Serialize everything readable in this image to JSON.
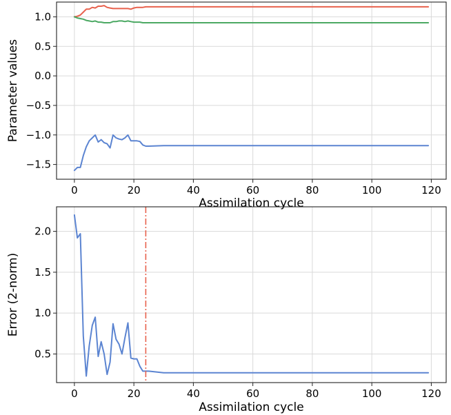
{
  "chart_data": [
    {
      "type": "line",
      "xlabel": "Assimilation cycle",
      "ylabel": "Parameter values",
      "xlim": [
        -6,
        125
      ],
      "ylim": [
        -1.75,
        1.25
      ],
      "xticks": [
        0,
        20,
        40,
        60,
        80,
        100,
        120
      ],
      "yticks": [
        -1.5,
        -1.0,
        -0.5,
        0.0,
        0.5,
        1.0
      ],
      "xtick_labels": [
        "0",
        "20",
        "40",
        "60",
        "80",
        "100",
        "120"
      ],
      "ytick_labels": [
        "−1.5",
        "−1.0",
        "−0.5",
        "0.0",
        "0.5",
        "1.0"
      ],
      "grid": true,
      "series": [
        {
          "color": "#e8604c",
          "x": [
            0,
            1,
            2,
            3,
            4,
            5,
            6,
            7,
            8,
            9,
            10,
            11,
            12,
            13,
            14,
            15,
            16,
            17,
            18,
            19,
            20,
            21,
            22,
            23,
            24,
            25,
            30,
            40,
            60,
            80,
            100,
            119
          ],
          "y": [
            1.0,
            1.01,
            1.03,
            1.08,
            1.13,
            1.13,
            1.16,
            1.15,
            1.18,
            1.18,
            1.19,
            1.16,
            1.15,
            1.14,
            1.14,
            1.14,
            1.14,
            1.14,
            1.14,
            1.13,
            1.15,
            1.16,
            1.16,
            1.16,
            1.17,
            1.17,
            1.17,
            1.17,
            1.17,
            1.17,
            1.17,
            1.17
          ]
        },
        {
          "color": "#4aa862",
          "x": [
            0,
            1,
            2,
            3,
            4,
            5,
            6,
            7,
            8,
            9,
            10,
            11,
            12,
            13,
            14,
            15,
            16,
            17,
            18,
            19,
            20,
            21,
            22,
            23,
            24,
            25,
            30,
            40,
            60,
            80,
            100,
            119
          ],
          "y": [
            1.0,
            0.98,
            0.97,
            0.96,
            0.94,
            0.93,
            0.92,
            0.93,
            0.91,
            0.91,
            0.9,
            0.9,
            0.9,
            0.92,
            0.92,
            0.93,
            0.93,
            0.92,
            0.93,
            0.92,
            0.91,
            0.91,
            0.91,
            0.9,
            0.9,
            0.9,
            0.9,
            0.9,
            0.9,
            0.9,
            0.9,
            0.9
          ]
        },
        {
          "color": "#5b84d1",
          "x": [
            0,
            1,
            2,
            3,
            4,
            5,
            6,
            7,
            8,
            9,
            10,
            11,
            12,
            13,
            14,
            15,
            16,
            17,
            18,
            19,
            20,
            21,
            22,
            23,
            24,
            25,
            30,
            40,
            60,
            80,
            100,
            119
          ],
          "y": [
            -1.6,
            -1.55,
            -1.55,
            -1.35,
            -1.2,
            -1.1,
            -1.05,
            -1.0,
            -1.12,
            -1.08,
            -1.13,
            -1.15,
            -1.22,
            -1.0,
            -1.05,
            -1.07,
            -1.08,
            -1.05,
            -1.0,
            -1.1,
            -1.1,
            -1.1,
            -1.11,
            -1.17,
            -1.19,
            -1.19,
            -1.18,
            -1.18,
            -1.18,
            -1.18,
            -1.18,
            -1.18
          ]
        }
      ]
    },
    {
      "type": "line",
      "xlabel": "Assimilation cycle",
      "ylabel": "Error (2-norm)",
      "xlim": [
        -6,
        125
      ],
      "ylim": [
        0.15,
        2.3
      ],
      "xticks": [
        0,
        20,
        40,
        60,
        80,
        100,
        120
      ],
      "yticks": [
        0.5,
        1.0,
        1.5,
        2.0
      ],
      "xtick_labels": [
        "0",
        "20",
        "40",
        "60",
        "80",
        "100",
        "120"
      ],
      "ytick_labels": [
        "0.5",
        "1.0",
        "1.5",
        "2.0"
      ],
      "grid": true,
      "vline": {
        "x": 24,
        "color": "#e8604c",
        "style": "dash-dot"
      },
      "series": [
        {
          "color": "#5b84d1",
          "x": [
            0,
            1,
            2,
            3,
            4,
            5,
            6,
            7,
            8,
            9,
            10,
            11,
            12,
            13,
            14,
            15,
            16,
            17,
            18,
            19,
            20,
            21,
            22,
            23,
            24,
            25,
            30,
            40,
            60,
            80,
            100,
            119
          ],
          "y": [
            2.2,
            1.92,
            1.97,
            0.72,
            0.23,
            0.6,
            0.85,
            0.95,
            0.47,
            0.65,
            0.5,
            0.25,
            0.4,
            0.87,
            0.68,
            0.62,
            0.5,
            0.7,
            0.88,
            0.45,
            0.44,
            0.44,
            0.35,
            0.29,
            0.29,
            0.29,
            0.27,
            0.27,
            0.27,
            0.27,
            0.27,
            0.27
          ]
        }
      ]
    }
  ]
}
